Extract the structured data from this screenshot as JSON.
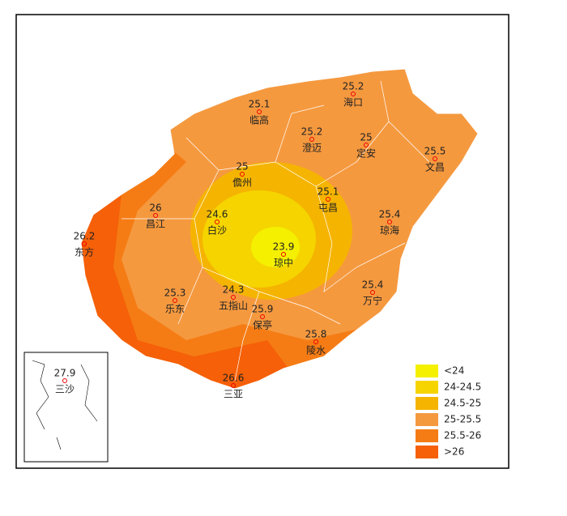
{
  "cities": [
    {
      "name": "海口",
      "value": 25.2
    },
    {
      "name": "临高",
      "value": 25.1
    },
    {
      "name": "澄迈",
      "value": 25.2
    },
    {
      "name": "定安",
      "value": 25
    },
    {
      "name": "文昌",
      "value": 25.5
    },
    {
      "name": "儋州",
      "value": 25
    },
    {
      "name": "屯昌",
      "value": 25.1
    },
    {
      "name": "昌江",
      "value": 26
    },
    {
      "name": "白沙",
      "value": 24.6
    },
    {
      "name": "琼海",
      "value": 25.4
    },
    {
      "name": "东方",
      "value": 26.2
    },
    {
      "name": "琼中",
      "value": 23.9
    },
    {
      "name": "万宁",
      "value": 25.4
    },
    {
      "name": "乐东",
      "value": 25.3
    },
    {
      "name": "五指山",
      "value": 24.3
    },
    {
      "name": "保亭",
      "value": 25.9
    },
    {
      "name": "陵水",
      "value": 25.8
    },
    {
      "name": "三亚",
      "value": 26.6
    },
    {
      "name": "三沙",
      "value": 27.9
    }
  ],
  "legend": [
    {
      "label": "<24",
      "color": "#f5f000"
    },
    {
      "label": "24-24.5",
      "color": "#f5d400"
    },
    {
      "label": "24.5-25",
      "color": "#f5b400"
    },
    {
      "label": "25-25.5",
      "color": "#f5993f"
    },
    {
      "label": "25.5-26",
      "color": "#f57c14"
    },
    {
      "label": ">26",
      "color": "#f56008"
    }
  ]
}
